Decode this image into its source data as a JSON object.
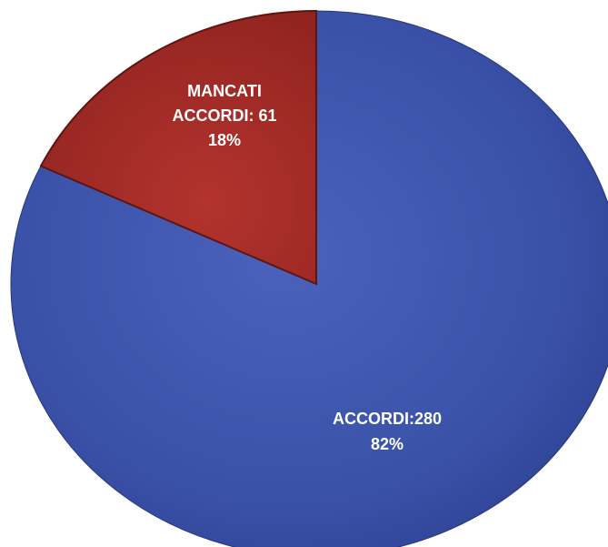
{
  "chart_data": {
    "type": "pie",
    "slices": [
      {
        "label_line1": "ACCORDI:280",
        "label_line2": "82%",
        "value": 280,
        "percent": 82,
        "color": "#3a51a8",
        "edge_color": "#27367a"
      },
      {
        "label_line1_a": "MANCATI",
        "label_line1_b": "ACCORDI: 61",
        "label_line2": "18%",
        "value": 61,
        "percent": 18,
        "color": "#a52b27",
        "edge_color": "#5e1512"
      }
    ],
    "start_angle_deg": 0,
    "direction": "clockwise",
    "legend": "none"
  }
}
